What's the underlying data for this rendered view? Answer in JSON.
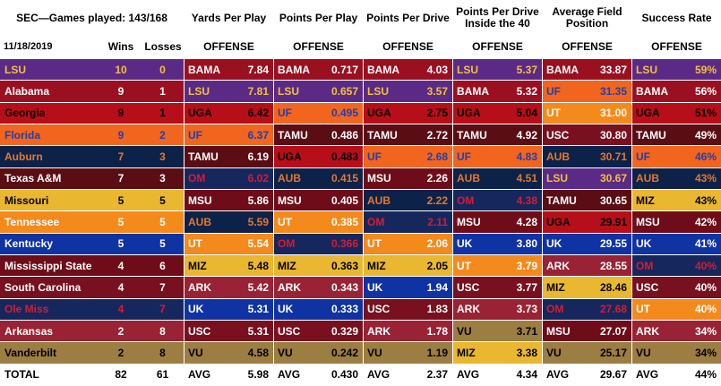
{
  "header": {
    "title": "SEC—Games played: 143/168",
    "date": "11/18/2019",
    "wins_label": "Wins",
    "losses_label": "Losses"
  },
  "teams": [
    {
      "name": "LSU",
      "wins": "10",
      "losses": "0",
      "bg": "#5b2a86",
      "fg": "#f2c23b"
    },
    {
      "name": "Alabama",
      "wins": "9",
      "losses": "1",
      "bg": "#9b1021",
      "fg": "#ffffff"
    },
    {
      "name": "Georgia",
      "wins": "9",
      "losses": "1",
      "bg": "#b70f19",
      "fg": "#000000"
    },
    {
      "name": "Florida",
      "wins": "9",
      "losses": "2",
      "bg": "#f2651e",
      "fg": "#1f3fb4"
    },
    {
      "name": "Auburn",
      "wins": "7",
      "losses": "3",
      "bg": "#0c2249",
      "fg": "#e8762b"
    },
    {
      "name": "Texas A&M",
      "wins": "7",
      "losses": "3",
      "bg": "#5b0d14",
      "fg": "#ffffff"
    },
    {
      "name": "Missouri",
      "wins": "5",
      "losses": "5",
      "bg": "#e9b730",
      "fg": "#000000"
    },
    {
      "name": "Tennessee",
      "wins": "5",
      "losses": "5",
      "bg": "#f48a1c",
      "fg": "#ffffff"
    },
    {
      "name": "Kentucky",
      "wins": "5",
      "losses": "5",
      "bg": "#0f33a3",
      "fg": "#ffffff"
    },
    {
      "name": "Mississippi State",
      "wins": "4",
      "losses": "6",
      "bg": "#6e0d19",
      "fg": "#ffffff"
    },
    {
      "name": "South Carolina",
      "wins": "4",
      "losses": "7",
      "bg": "#78101f",
      "fg": "#ffffff"
    },
    {
      "name": "Ole Miss",
      "wins": "4",
      "losses": "7",
      "bg": "#16275e",
      "fg": "#d81b31"
    },
    {
      "name": "Arkansas",
      "wins": "2",
      "losses": "8",
      "bg": "#992234",
      "fg": "#ffffff"
    },
    {
      "name": "Vanderbilt",
      "wins": "2",
      "losses": "8",
      "bg": "#9c7d42",
      "fg": "#000000"
    }
  ],
  "total": {
    "label": "TOTAL",
    "wins": "82",
    "losses": "61"
  },
  "colors": {
    "BAMA": {
      "bg": "#9b1021",
      "fg": "#ffffff"
    },
    "LSU": {
      "bg": "#5b2a86",
      "fg": "#f2c23b"
    },
    "UGA": {
      "bg": "#b70f19",
      "fg": "#000000"
    },
    "UF": {
      "bg": "#f2651e",
      "fg": "#1f3fb4"
    },
    "TAMU": {
      "bg": "#5b0d14",
      "fg": "#ffffff"
    },
    "OM": {
      "bg": "#16275e",
      "fg": "#d81b31"
    },
    "MSU": {
      "bg": "#6e0d19",
      "fg": "#ffffff"
    },
    "AUB": {
      "bg": "#0c2249",
      "fg": "#e8762b"
    },
    "UT": {
      "bg": "#f48a1c",
      "fg": "#ffffff"
    },
    "MIZ": {
      "bg": "#e9b730",
      "fg": "#000000"
    },
    "ARK": {
      "bg": "#992234",
      "fg": "#ffffff"
    },
    "UK": {
      "bg": "#0f33a3",
      "fg": "#ffffff"
    },
    "USC": {
      "bg": "#78101f",
      "fg": "#ffffff"
    },
    "VU": {
      "bg": "#9c7d42",
      "fg": "#000000"
    }
  },
  "chart_data": {
    "type": "table",
    "title": "SEC—Games played: 143/168",
    "date": "11/18/2019",
    "standings": [
      {
        "team": "LSU",
        "wins": 10,
        "losses": 0
      },
      {
        "team": "Alabama",
        "wins": 9,
        "losses": 1
      },
      {
        "team": "Georgia",
        "wins": 9,
        "losses": 1
      },
      {
        "team": "Florida",
        "wins": 9,
        "losses": 2
      },
      {
        "team": "Auburn",
        "wins": 7,
        "losses": 3
      },
      {
        "team": "Texas A&M",
        "wins": 7,
        "losses": 3
      },
      {
        "team": "Missouri",
        "wins": 5,
        "losses": 5
      },
      {
        "team": "Tennessee",
        "wins": 5,
        "losses": 5
      },
      {
        "team": "Kentucky",
        "wins": 5,
        "losses": 5
      },
      {
        "team": "Mississippi State",
        "wins": 4,
        "losses": 6
      },
      {
        "team": "South Carolina",
        "wins": 4,
        "losses": 7
      },
      {
        "team": "Ole Miss",
        "wins": 4,
        "losses": 7
      },
      {
        "team": "Arkansas",
        "wins": 2,
        "losses": 8
      },
      {
        "team": "Vanderbilt",
        "wins": 2,
        "losses": 8
      }
    ],
    "metrics": [
      {
        "title": "Yards Per Play",
        "subtitle": "OFFENSE",
        "avg_label": "AVG",
        "avg": "5.98",
        "ranking": [
          [
            "BAMA",
            "7.84"
          ],
          [
            "LSU",
            "7.81"
          ],
          [
            "UGA",
            "6.42"
          ],
          [
            "UF",
            "6.37"
          ],
          [
            "TAMU",
            "6.19"
          ],
          [
            "OM",
            "6.02"
          ],
          [
            "MSU",
            "5.86"
          ],
          [
            "AUB",
            "5.59"
          ],
          [
            "UT",
            "5.54"
          ],
          [
            "MIZ",
            "5.48"
          ],
          [
            "ARK",
            "5.42"
          ],
          [
            "UK",
            "5.31"
          ],
          [
            "USC",
            "5.31"
          ],
          [
            "VU",
            "4.58"
          ]
        ]
      },
      {
        "title": "Points Per Play",
        "subtitle": "OFFENSE",
        "avg_label": "AVG",
        "avg": "0.430",
        "ranking": [
          [
            "BAMA",
            "0.717"
          ],
          [
            "LSU",
            "0.657"
          ],
          [
            "UF",
            "0.495"
          ],
          [
            "TAMU",
            "0.486"
          ],
          [
            "UGA",
            "0.483"
          ],
          [
            "AUB",
            "0.415"
          ],
          [
            "MSU",
            "0.405"
          ],
          [
            "UT",
            "0.385"
          ],
          [
            "OM",
            "0.366"
          ],
          [
            "MIZ",
            "0.363"
          ],
          [
            "ARK",
            "0.343"
          ],
          [
            "UK",
            "0.333"
          ],
          [
            "USC",
            "0.329"
          ],
          [
            "VU",
            "0.242"
          ]
        ]
      },
      {
        "title": "Points Per Drive",
        "subtitle": "OFFENSE",
        "avg_label": "AVG",
        "avg": "2.37",
        "ranking": [
          [
            "BAMA",
            "4.03"
          ],
          [
            "LSU",
            "3.57"
          ],
          [
            "UGA",
            "2.75"
          ],
          [
            "TAMU",
            "2.72"
          ],
          [
            "UF",
            "2.68"
          ],
          [
            "MSU",
            "2.26"
          ],
          [
            "AUB",
            "2.22"
          ],
          [
            "OM",
            "2.11"
          ],
          [
            "UT",
            "2.06"
          ],
          [
            "MIZ",
            "2.05"
          ],
          [
            "UK",
            "1.94"
          ],
          [
            "USC",
            "1.83"
          ],
          [
            "ARK",
            "1.78"
          ],
          [
            "VU",
            "1.19"
          ]
        ]
      },
      {
        "title": "Points Per Drive Inside the 40",
        "subtitle": "OFFENSE",
        "avg_label": "AVG",
        "avg": "4.34",
        "ranking": [
          [
            "LSU",
            "5.37"
          ],
          [
            "BAMA",
            "5.32"
          ],
          [
            "UGA",
            "5.04"
          ],
          [
            "TAMU",
            "4.92"
          ],
          [
            "UF",
            "4.83"
          ],
          [
            "AUB",
            "4.51"
          ],
          [
            "OM",
            "4.38"
          ],
          [
            "MSU",
            "4.28"
          ],
          [
            "UK",
            "3.80"
          ],
          [
            "UT",
            "3.79"
          ],
          [
            "USC",
            "3.77"
          ],
          [
            "ARK",
            "3.73"
          ],
          [
            "VU",
            "3.71"
          ],
          [
            "MIZ",
            "3.38"
          ]
        ]
      },
      {
        "title": "Average Field Position",
        "subtitle": "OFFENSE",
        "avg_label": "AVG",
        "avg": "29.67",
        "ranking": [
          [
            "BAMA",
            "33.87"
          ],
          [
            "UF",
            "31.35"
          ],
          [
            "UT",
            "31.00"
          ],
          [
            "USC",
            "30.80"
          ],
          [
            "AUB",
            "30.71"
          ],
          [
            "LSU",
            "30.67"
          ],
          [
            "TAMU",
            "30.65"
          ],
          [
            "UGA",
            "29.91"
          ],
          [
            "UK",
            "29.55"
          ],
          [
            "ARK",
            "28.55"
          ],
          [
            "MIZ",
            "28.46"
          ],
          [
            "OM",
            "27.68"
          ],
          [
            "MSU",
            "27.07"
          ],
          [
            "VU",
            "25.17"
          ]
        ]
      },
      {
        "title": "Success Rate",
        "subtitle": "OFFENSE",
        "avg_label": "AVG",
        "avg": "44%",
        "ranking": [
          [
            "LSU",
            "59%"
          ],
          [
            "BAMA",
            "56%"
          ],
          [
            "UGA",
            "51%"
          ],
          [
            "TAMU",
            "49%"
          ],
          [
            "UF",
            "46%"
          ],
          [
            "AUB",
            "43%"
          ],
          [
            "MIZ",
            "43%"
          ],
          [
            "MSU",
            "42%"
          ],
          [
            "UK",
            "41%"
          ],
          [
            "OM",
            "40%"
          ],
          [
            "USC",
            "40%"
          ],
          [
            "UT",
            "40%"
          ],
          [
            "ARK",
            "34%"
          ],
          [
            "VU",
            "34%"
          ]
        ]
      }
    ]
  }
}
